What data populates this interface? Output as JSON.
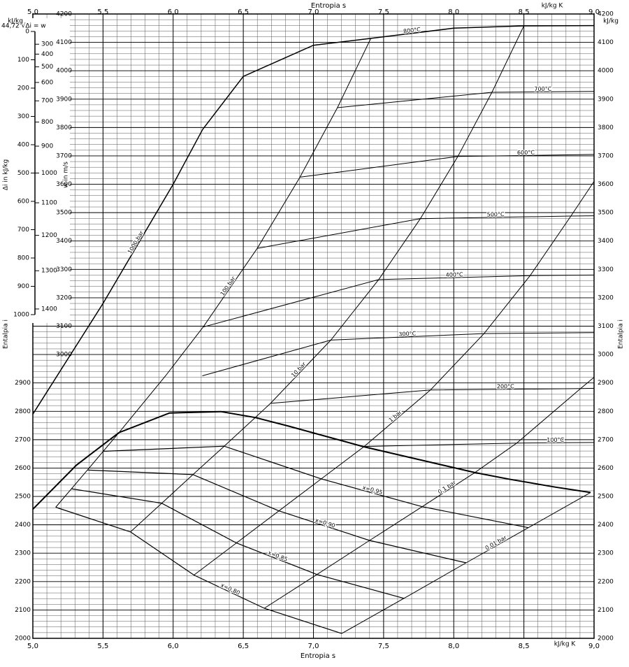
{
  "chart_data": {
    "type": "line",
    "x_label": "Entropia s",
    "x_unit": "kJ/kg K",
    "y_label": "Entalpia i",
    "y_unit": "kJ/kg",
    "xlim": [
      5.0,
      9.0
    ],
    "xticks": [
      {
        "value": 5.0,
        "label": "5,0"
      },
      {
        "value": 5.5,
        "label": "5,5"
      },
      {
        "value": 6.0,
        "label": "6,0"
      },
      {
        "value": 6.5,
        "label": "6,5"
      },
      {
        "value": 7.0,
        "label": "7,0"
      },
      {
        "value": 7.5,
        "label": "7,5"
      },
      {
        "value": 8.0,
        "label": "8,0"
      },
      {
        "value": 8.5,
        "label": "8,5"
      },
      {
        "value": 9.0,
        "label": "9,0"
      }
    ],
    "ylim": [
      2000,
      4200
    ],
    "yticks": [
      2000,
      2100,
      2200,
      2300,
      2400,
      2500,
      2600,
      2700,
      2800,
      2900,
      3000,
      3100,
      3200,
      3300,
      3400,
      3500,
      3600,
      3700,
      3800,
      3900,
      4000,
      4100,
      4200
    ],
    "grid": {
      "x_step": 0.1,
      "y_step": 20
    },
    "legend": false,
    "series": [
      {
        "color": "#000000",
        "width": 2,
        "x": [
          5.0,
          5.31,
          5.614,
          5.974,
          6.34,
          6.585,
          6.821,
          7.359,
          8.15,
          8.394,
          8.723,
          8.975
        ],
        "values": [
          2455,
          2610,
          2725,
          2794,
          2799,
          2778,
          2748,
          2675,
          2584,
          2561,
          2533,
          2514
        ]
      },
      {
        "name": "x=0,80",
        "color": "#000000",
        "width": 1.2,
        "x": [
          5.163,
          5.696,
          6.148,
          6.65,
          7.201
        ],
        "values": [
          2462,
          2375,
          2223,
          2106,
          2017
        ]
      },
      {
        "name": "x=0,85",
        "color": "#000000",
        "width": 1.2,
        "x": [
          5.276,
          5.919,
          6.451,
          7.025,
          7.645
        ],
        "values": [
          2527,
          2476,
          2336,
          2225,
          2141
        ]
      },
      {
        "name": "x=0,90",
        "color": "#000000",
        "width": 1.2,
        "x": [
          5.389,
          6.141,
          6.754,
          7.4,
          8.088
        ],
        "values": [
          2593,
          2577,
          2449,
          2345,
          2266
        ]
      },
      {
        "name": "x=0,95",
        "color": "#000000",
        "width": 1.2,
        "x": [
          5.502,
          6.364,
          7.056,
          7.775,
          8.532
        ],
        "values": [
          2659,
          2677,
          2562,
          2464,
          2390
        ]
      },
      {
        "name": "0,01 bar",
        "color": "#000000",
        "width": 1,
        "x": [
          7.201,
          7.645,
          8.088,
          8.532,
          8.975
        ],
        "values": [
          2017,
          2141,
          2266,
          2390,
          2514
        ]
      },
      {
        "name": "0,1 bar",
        "color": "#000000",
        "width": 1,
        "x": [
          6.65,
          7.025,
          7.4,
          7.775,
          8.15,
          8.449,
          8.904,
          9.0
        ],
        "values": [
          2106,
          2225,
          2345,
          2464,
          2584,
          2688,
          2880,
          2920
        ]
      },
      {
        "name": "1 bar",
        "color": "#000000",
        "width": 1,
        "x": [
          6.148,
          6.451,
          6.754,
          7.056,
          7.359,
          7.834,
          8.216,
          8.544,
          8.835,
          9.0
        ],
        "values": [
          2223,
          2336,
          2449,
          2562,
          2675,
          2875,
          3074,
          3278,
          3488,
          3610
        ]
      },
      {
        "name": "10 bar",
        "color": "#000000",
        "width": 1,
        "x": [
          5.696,
          5.919,
          6.141,
          6.364,
          6.585,
          6.694,
          7.124,
          7.465,
          7.762,
          8.029,
          8.272,
          8.5
        ],
        "values": [
          2375,
          2476,
          2577,
          2677,
          2778,
          2828,
          3051,
          3264,
          3479,
          3698,
          3924,
          4158
        ]
      },
      {
        "name": "100 bar",
        "color": "#000000",
        "width": 1,
        "x": [
          5.163,
          5.389,
          5.614,
          5.946,
          6.214,
          6.599,
          6.904,
          7.171,
          7.409
        ],
        "values": [
          2462,
          2593,
          2725,
          2925,
          3097,
          3374,
          3625,
          3870,
          4114
        ]
      },
      {
        "name": "1000 bar",
        "color": "#000000",
        "width": 1.5,
        "x": [
          5.0,
          5.5,
          6.0,
          6.21
        ],
        "values": [
          2790,
          3180,
          3600,
          3793
        ]
      },
      {
        "name": "100°C",
        "color": "#000000",
        "width": 1,
        "x": [
          7.361,
          8.449,
          9.0
        ],
        "values": [
          2676,
          2688,
          2690
        ]
      },
      {
        "name": "200°C",
        "color": "#000000",
        "width": 1,
        "x": [
          6.694,
          7.834,
          8.904,
          9.0
        ],
        "values": [
          2828,
          2875,
          2880,
          2881
        ]
      },
      {
        "name": "300°C",
        "color": "#000000",
        "width": 1,
        "x": [
          6.208,
          7.124,
          8.216,
          9.0
        ],
        "values": [
          2925,
          3051,
          3074,
          3077
        ]
      },
      {
        "name": "400°C",
        "color": "#000000",
        "width": 1,
        "x": [
          6.214,
          7.465,
          8.544,
          9.0
        ],
        "values": [
          3097,
          3264,
          3278,
          3280
        ]
      },
      {
        "name": "500°C",
        "color": "#000000",
        "width": 1,
        "x": [
          6.599,
          7.762,
          8.835,
          9.0
        ],
        "values": [
          3374,
          3479,
          3488,
          3489
        ]
      },
      {
        "name": "600°C",
        "color": "#000000",
        "width": 1,
        "x": [
          6.904,
          8.029,
          9.0
        ],
        "values": [
          3625,
          3698,
          3705
        ]
      },
      {
        "name": "700°C",
        "color": "#000000",
        "width": 1,
        "x": [
          7.171,
          8.272,
          9.0
        ],
        "values": [
          3870,
          3924,
          3927
        ]
      },
      {
        "name": "800°C",
        "color": "#000000",
        "width": 1.5,
        "x": [
          6.21,
          6.5,
          7.0,
          7.409,
          8.0,
          8.5,
          9.0
        ],
        "values": [
          3793,
          3980,
          4090,
          4114,
          4150,
          4158,
          4159
        ]
      }
    ],
    "nomogram": {
      "title": "44,72 √Δi = w",
      "coefficient": 44.72,
      "di_label": "Δi in kJ/kg",
      "w_label": "w in m/s",
      "di_lim": [
        0,
        1000
      ],
      "di_ticks": [
        0,
        100,
        200,
        300,
        400,
        500,
        600,
        700,
        800,
        900,
        1000
      ],
      "w_ticks": [
        300,
        400,
        500,
        600,
        700,
        800,
        900,
        1000,
        1100,
        1200,
        1300,
        1400
      ]
    }
  }
}
